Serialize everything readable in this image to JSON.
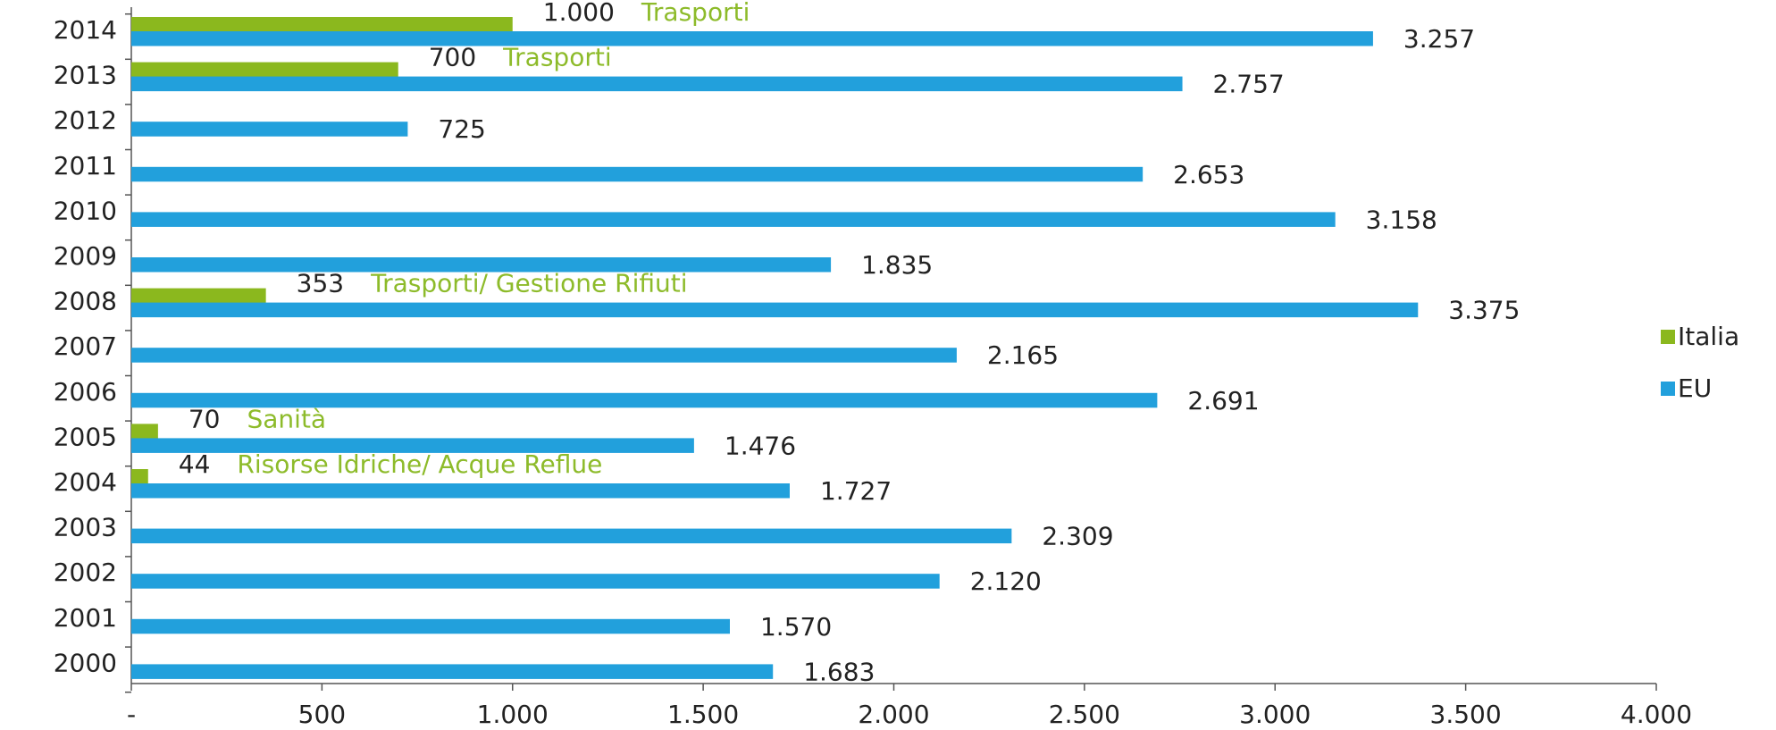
{
  "chart_data": {
    "type": "barh",
    "categories": [
      "2014",
      "2013",
      "2012",
      "2011",
      "2010",
      "2009",
      "2008",
      "2007",
      "2006",
      "2005",
      "2004",
      "2003",
      "2002",
      "2001",
      "2000"
    ],
    "series": [
      {
        "name": "Italia",
        "color": "#8bb81e",
        "values": [
          1000,
          700,
          null,
          null,
          null,
          null,
          353,
          null,
          null,
          70,
          44,
          null,
          null,
          null,
          null
        ],
        "value_labels": [
          "1.000",
          "700",
          null,
          null,
          null,
          null,
          "353",
          null,
          null,
          "70",
          "44",
          null,
          null,
          null,
          null
        ],
        "annotations": [
          "Trasporti",
          "Trasporti",
          null,
          null,
          null,
          null,
          "Trasporti/ Gestione Rifiuti",
          null,
          null,
          "Sanità",
          "Risorse Idriche/ Acque Reflue",
          null,
          null,
          null,
          null
        ]
      },
      {
        "name": "EU",
        "color": "#22a0dc",
        "values": [
          3257,
          2757,
          725,
          2653,
          3158,
          1835,
          3375,
          2165,
          2691,
          1476,
          1727,
          2309,
          2120,
          1570,
          1683
        ],
        "value_labels": [
          "3.257",
          "2.757",
          "725",
          "2.653",
          "3.158",
          "1.835",
          "3.375",
          "2.165",
          "2.691",
          "1.476",
          "1.727",
          "2.309",
          "2.120",
          "1.570",
          "1.683"
        ]
      }
    ],
    "xlim": [
      0,
      4000
    ],
    "xticks": [
      {
        "value": 0,
        "label": "-"
      },
      500,
      {
        "value": 1000,
        "label": "1.000"
      },
      {
        "value": 1500,
        "label": "1.500"
      },
      {
        "value": 2000,
        "label": "2.000"
      },
      {
        "value": 2500,
        "label": "2.500"
      },
      {
        "value": 3000,
        "label": "3.000"
      },
      {
        "value": 3500,
        "label": "3.500"
      },
      {
        "value": 4000,
        "label": "4.000"
      }
    ],
    "legend": "right"
  }
}
